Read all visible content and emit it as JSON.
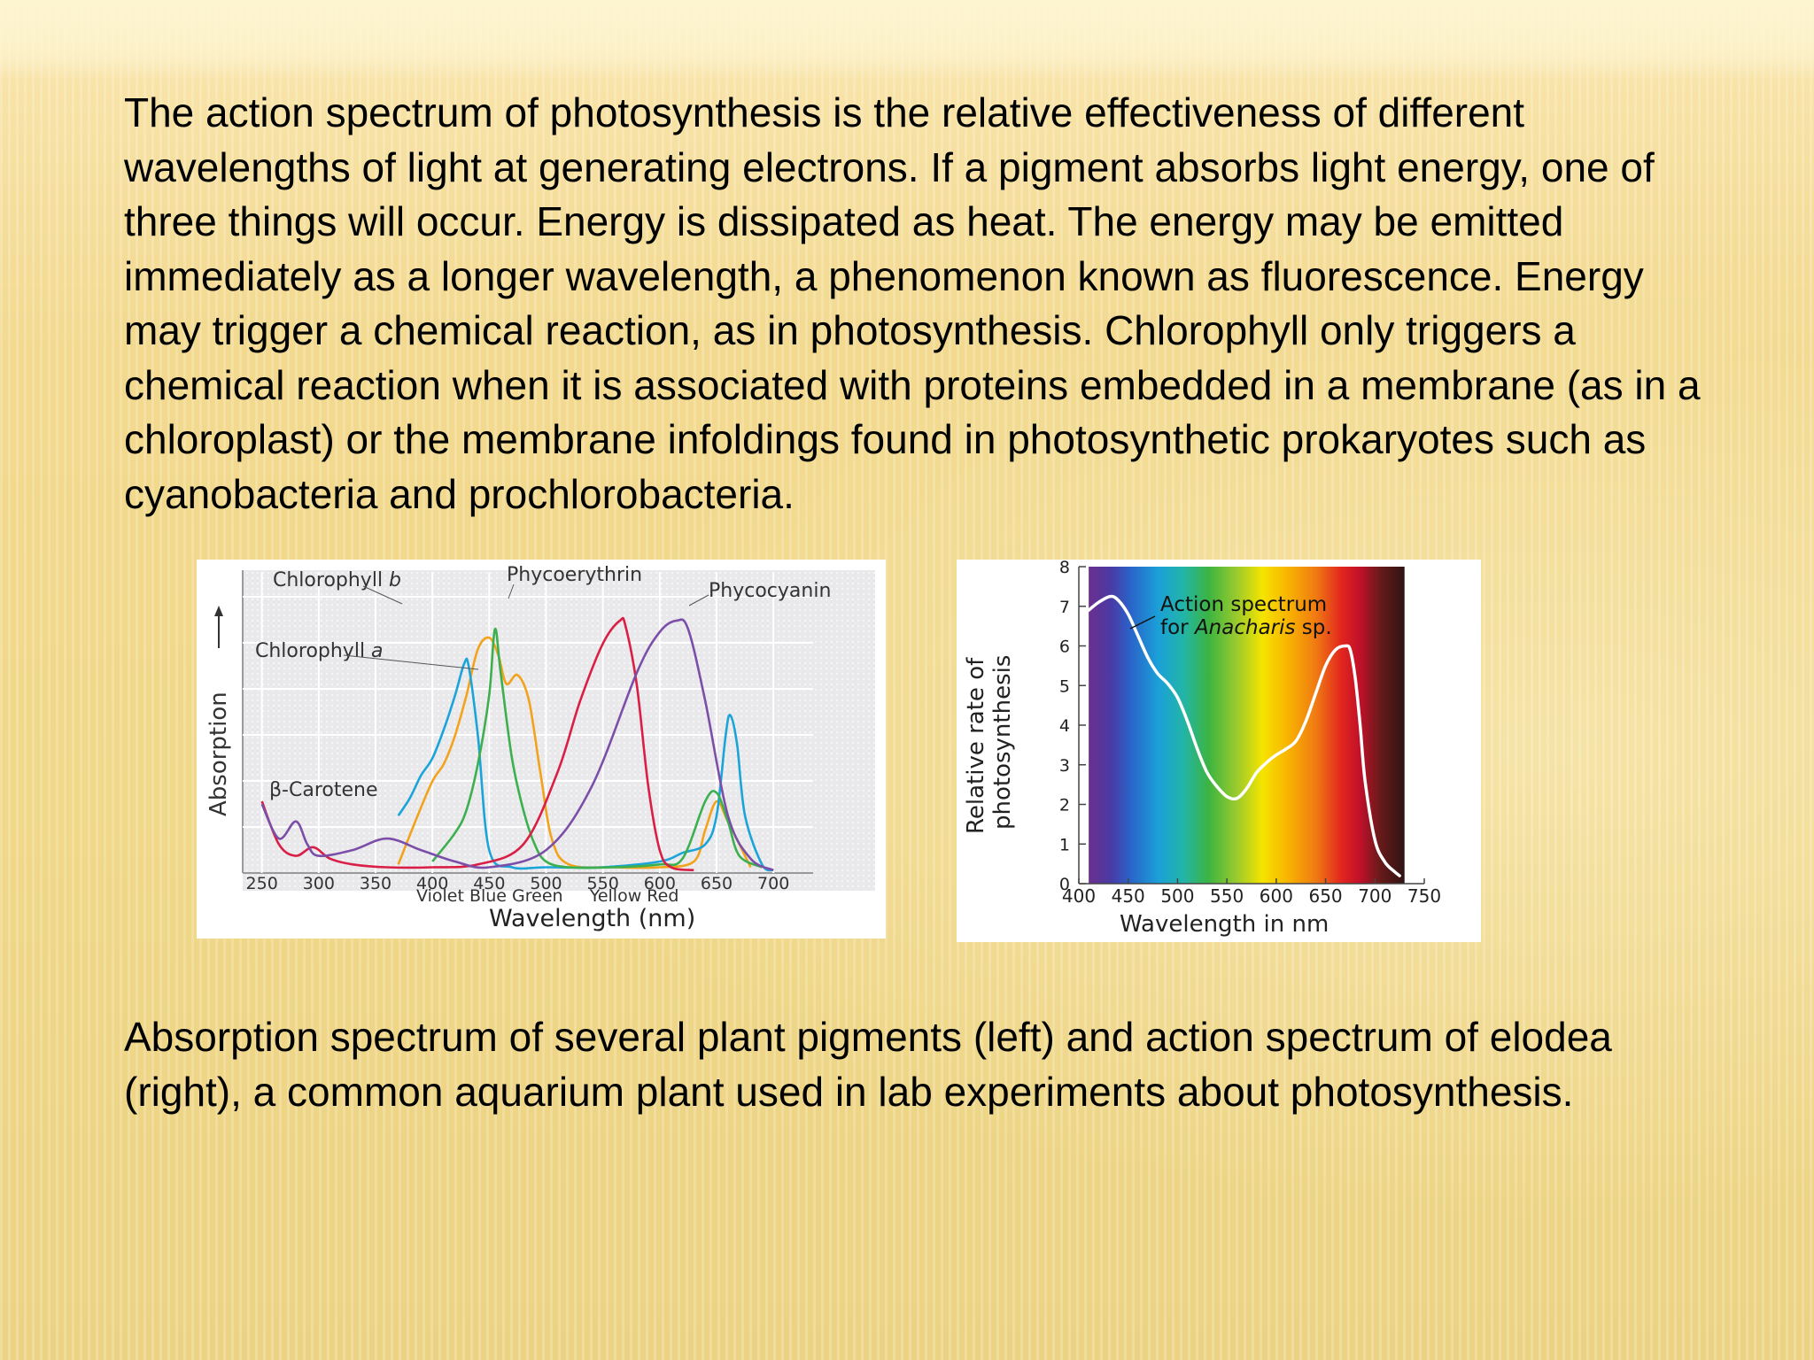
{
  "slide": {
    "intro_text": "The action spectrum of photosynthesis is the relative effectiveness of different wavelengths of light at generating electrons. If a pigment absorbs light energy, one of three things will occur. Energy is dissipated as heat. The energy may be emitted immediately as a longer wavelength, a phenomenon known as fluorescence. Energy may trigger a chemical reaction, as in photosynthesis. Chlorophyll only triggers a chemical reaction when it is associated with proteins embedded in a membrane (as in a chloroplast) or the membrane infoldings found in photosynthetic prokaryotes such as cyanobacteria and prochlorobacteria.",
    "caption_text": "Absorption spectrum of several plant pigments (left) and action spectrum of elodea (right), a common aquarium plant used in lab experiments about photosynthesis."
  },
  "chart_data": [
    {
      "type": "line",
      "title": "",
      "xlabel": "Wavelength (nm)",
      "ylabel": "Absorption",
      "xlim": [
        230,
        710
      ],
      "xticks": [
        250,
        300,
        350,
        400,
        450,
        500,
        550,
        600,
        650,
        700
      ],
      "color_band_labels": "Violet Blue Green     Yellow Red",
      "grid": true,
      "series": [
        {
          "name": "Chlorophyll b",
          "color": "#f2a21b",
          "x": [
            370,
            385,
            400,
            410,
            420,
            430,
            440,
            450,
            458,
            465,
            475,
            485,
            495,
            505,
            520,
            560,
            600,
            630,
            640,
            650,
            660,
            680
          ],
          "y": [
            0.03,
            0.18,
            0.32,
            0.38,
            0.48,
            0.62,
            0.78,
            0.82,
            0.76,
            0.66,
            0.69,
            0.6,
            0.35,
            0.12,
            0.03,
            0.02,
            0.02,
            0.04,
            0.15,
            0.25,
            0.18,
            0.02
          ]
        },
        {
          "name": "Chlorophyll a",
          "color": "#1ba4d9",
          "x": [
            370,
            380,
            390,
            400,
            410,
            420,
            428,
            432,
            440,
            450,
            470,
            500,
            550,
            600,
            620,
            640,
            650,
            658,
            662,
            668,
            675,
            690,
            700
          ],
          "y": [
            0.2,
            0.26,
            0.34,
            0.4,
            0.5,
            0.62,
            0.73,
            0.72,
            0.48,
            0.08,
            0.02,
            0.02,
            0.02,
            0.04,
            0.07,
            0.1,
            0.2,
            0.48,
            0.55,
            0.45,
            0.2,
            0.03,
            0.01
          ]
        },
        {
          "name": "β-Carotene",
          "color": "#3cb04e",
          "x": [
            400,
            420,
            430,
            440,
            450,
            455,
            460,
            470,
            480,
            490,
            500,
            520,
            560,
            600,
            620,
            640,
            650,
            660,
            670,
            690
          ],
          "y": [
            0.04,
            0.14,
            0.22,
            0.38,
            0.62,
            0.85,
            0.7,
            0.4,
            0.22,
            0.1,
            0.04,
            0.02,
            0.02,
            0.03,
            0.05,
            0.25,
            0.28,
            0.18,
            0.06,
            0.02
          ]
        },
        {
          "name": "Phycoerythrin",
          "color": "#d91f45",
          "x": [
            250,
            265,
            280,
            295,
            310,
            330,
            360,
            400,
            440,
            480,
            510,
            530,
            550,
            565,
            570,
            580,
            590,
            600,
            610,
            630
          ],
          "y": [
            0.25,
            0.1,
            0.06,
            0.09,
            0.05,
            0.03,
            0.02,
            0.02,
            0.03,
            0.1,
            0.35,
            0.6,
            0.8,
            0.88,
            0.86,
            0.65,
            0.3,
            0.08,
            0.02,
            0.01
          ]
        },
        {
          "name": "Phycocyanin",
          "color": "#7b4ea8",
          "x": [
            250,
            265,
            280,
            290,
            300,
            330,
            360,
            390,
            420,
            450,
            500,
            540,
            580,
            600,
            615,
            625,
            640,
            660,
            680,
            700
          ],
          "y": [
            0.24,
            0.12,
            0.18,
            0.1,
            0.06,
            0.08,
            0.12,
            0.08,
            0.04,
            0.02,
            0.08,
            0.3,
            0.7,
            0.84,
            0.88,
            0.85,
            0.6,
            0.2,
            0.05,
            0.01
          ]
        }
      ]
    },
    {
      "type": "line",
      "title": "",
      "xlabel": "Wavelength in nm",
      "ylabel_lines": [
        "Relative rate of",
        "photosynthesis"
      ],
      "xlim": [
        400,
        750
      ],
      "ylim": [
        0,
        8
      ],
      "xticks": [
        400,
        450,
        500,
        550,
        600,
        650,
        700,
        750
      ],
      "yticks": [
        0,
        1,
        2,
        3,
        4,
        5,
        6,
        7,
        8
      ],
      "annotation": {
        "line1": "Action spectrum",
        "line2_prefix": "for ",
        "line2_italic": "Anacharis",
        "line2_suffix": " sp."
      },
      "series": [
        {
          "name": "Action spectrum for Anacharis sp.",
          "color": "#ffffff",
          "x": [
            410,
            420,
            432,
            440,
            450,
            460,
            470,
            480,
            490,
            500,
            510,
            520,
            530,
            540,
            550,
            560,
            570,
            580,
            590,
            600,
            610,
            620,
            630,
            640,
            650,
            660,
            670,
            675,
            680,
            685,
            690,
            700,
            710,
            720,
            725
          ],
          "y": [
            6.9,
            7.1,
            7.25,
            7.15,
            6.8,
            6.25,
            5.7,
            5.3,
            5.05,
            4.7,
            4.1,
            3.4,
            2.8,
            2.45,
            2.2,
            2.15,
            2.4,
            2.8,
            3.05,
            3.25,
            3.4,
            3.6,
            4.1,
            4.8,
            5.5,
            5.9,
            6.0,
            5.9,
            5.2,
            4.0,
            2.6,
            1.1,
            0.55,
            0.3,
            0.2
          ]
        }
      ]
    }
  ]
}
